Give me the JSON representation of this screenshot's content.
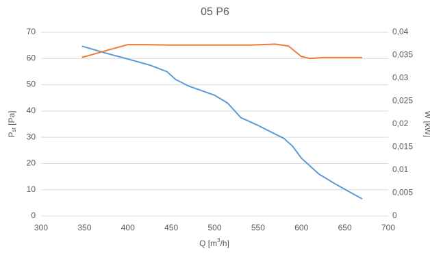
{
  "chart_data": {
    "type": "line",
    "title": "05 P6",
    "x_label": [
      "Q [m",
      "3",
      "/h]"
    ],
    "y_label": [
      "P",
      "st",
      " [Pa]"
    ],
    "y2_label": "W [kW]",
    "xlim": [
      300,
      700
    ],
    "xticks": [
      300,
      350,
      400,
      450,
      500,
      550,
      600,
      650,
      700
    ],
    "ylim": [
      0,
      70
    ],
    "yticks": [
      0,
      10,
      20,
      30,
      40,
      50,
      60,
      70
    ],
    "y2lim": [
      0,
      0.04
    ],
    "y2ticks": [
      0,
      {
        "value": 0.005,
        "label": "0,005"
      },
      {
        "value": 0.01,
        "label": "0,01"
      },
      {
        "value": 0.015,
        "label": "0,015"
      },
      {
        "value": 0.02,
        "label": "0,02"
      },
      {
        "value": 0.025,
        "label": "0,025"
      },
      {
        "value": 0.03,
        "label": "0,03"
      },
      {
        "value": 0.035,
        "label": "0,035"
      },
      {
        "value": 0.04,
        "label": "0,04"
      }
    ],
    "grid": true,
    "series": [
      {
        "color": "#5b9bd5",
        "x": [
          347,
          375,
          400,
          425,
          445,
          455,
          470,
          500,
          515,
          530,
          550,
          580,
          590,
          600,
          620,
          640,
          670
        ],
        "values": [
          64.7,
          62,
          59.8,
          57.5,
          55,
          52,
          49.5,
          46,
          43,
          37.5,
          34.5,
          29.5,
          26.5,
          22,
          16,
          12,
          6.5
        ]
      },
      {
        "color": "#ed7d31",
        "axis": "y2",
        "x": [
          347,
          375,
          400,
          420,
          450,
          500,
          540,
          570,
          585,
          600,
          610,
          625,
          670
        ],
        "values": [
          0.0345,
          0.036,
          0.0373,
          0.0373,
          0.0372,
          0.0372,
          0.0372,
          0.0374,
          0.037,
          0.0347,
          0.0343,
          0.0345,
          0.0345
        ]
      }
    ]
  }
}
